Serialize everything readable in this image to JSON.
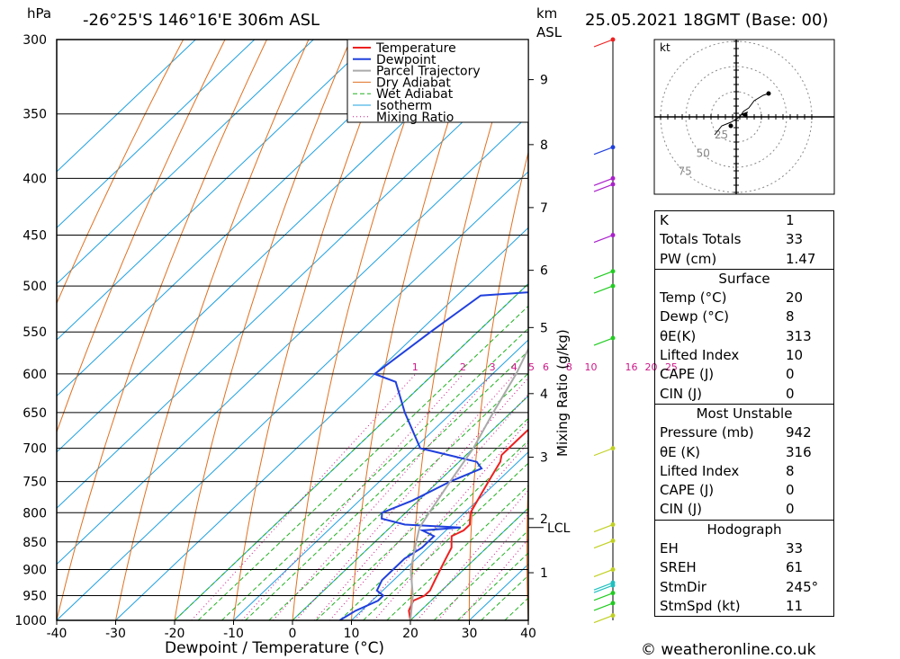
{
  "header": {
    "pressure_unit": "hPa",
    "location": "-26°25'S  146°16'E  306m  ASL",
    "height_unit_top": "km",
    "height_unit_bottom": "ASL",
    "datetime": "25.05.2021  18GMT  (Base: 00)"
  },
  "footer": {
    "credit": "© weatheronline.co.uk"
  },
  "colors": {
    "temperature": "#ee2020",
    "dewpoint": "#2040dd",
    "parcel": "#aaaaaa",
    "dry_adiabat": "#e07020",
    "wet_adiabat": "#20b020",
    "isotherm": "#1ea0e0",
    "mixing_ratio": "#cc1888"
  },
  "chart_data": {
    "type": "line",
    "title": "-26°25'S  146°16'E  306m  ASL",
    "xlabel": "Dewpoint / Temperature (°C)",
    "ylabel": "hPa",
    "xlim": [
      -40,
      40
    ],
    "ylim": [
      1000,
      300
    ],
    "x_ticks": [
      "-40",
      "-30",
      "-20",
      "-10",
      "0",
      "10",
      "20",
      "30",
      "40"
    ],
    "y_ticks": [
      "300",
      "350",
      "400",
      "450",
      "500",
      "550",
      "600",
      "650",
      "700",
      "750",
      "800",
      "850",
      "900",
      "950",
      "1000"
    ],
    "right_axis_label": "km ASL",
    "km_ticks": [
      {
        "label": "1",
        "p": 906
      },
      {
        "label": "2",
        "p": 810
      },
      {
        "label": "3",
        "p": 713
      },
      {
        "label": "4",
        "p": 625
      },
      {
        "label": "5",
        "p": 545
      },
      {
        "label": "6",
        "p": 484
      },
      {
        "label": "7",
        "p": 425
      },
      {
        "label": "8",
        "p": 373
      },
      {
        "label": "9",
        "p": 326
      }
    ],
    "lcl_label": "LCL",
    "lcl_p": 825,
    "mixing_ratio_label": "Mixing Ratio (g/kg)",
    "mixing_ratio_values": [
      "1",
      "2",
      "3",
      "4",
      "5",
      "6",
      "8",
      "10",
      "16",
      "20",
      "25"
    ],
    "legend": [
      "Temperature",
      "Dewpoint",
      "Parcel Trajectory",
      "Dry Adiabat",
      "Wet Adiabat",
      "Isotherm",
      "Mixing Ratio"
    ],
    "legend_position": "top-right",
    "series": [
      {
        "name": "Temperature",
        "points": [
          [
            1000,
            20
          ],
          [
            990,
            19
          ],
          [
            980,
            18
          ],
          [
            960,
            17
          ],
          [
            950,
            18
          ],
          [
            940,
            18
          ],
          [
            920,
            17
          ],
          [
            900,
            16
          ],
          [
            880,
            15
          ],
          [
            860,
            14
          ],
          [
            850,
            13
          ],
          [
            840,
            12
          ],
          [
            830,
            13
          ],
          [
            820,
            13
          ],
          [
            810,
            12
          ],
          [
            800,
            11
          ],
          [
            780,
            10
          ],
          [
            760,
            9
          ],
          [
            740,
            8
          ],
          [
            720,
            7
          ],
          [
            710,
            6
          ],
          [
            700,
            6
          ],
          [
            650,
            6
          ],
          [
            620,
            6
          ],
          [
            610,
            7
          ],
          [
            600,
            7
          ],
          [
            590,
            7
          ],
          [
            550,
            6
          ],
          [
            500,
            4
          ],
          [
            470,
            2
          ],
          [
            460,
            2
          ],
          [
            450,
            3
          ],
          [
            440,
            3
          ],
          [
            420,
            1
          ],
          [
            400,
            -1
          ],
          [
            380,
            -3
          ],
          [
            360,
            -5
          ],
          [
            340,
            -6
          ],
          [
            320,
            -7
          ],
          [
            300,
            -8
          ]
        ]
      },
      {
        "name": "Dewpoint",
        "points": [
          [
            1000,
            8
          ],
          [
            980,
            9
          ],
          [
            960,
            11
          ],
          [
            950,
            11
          ],
          [
            940,
            9
          ],
          [
            920,
            8
          ],
          [
            900,
            8
          ],
          [
            880,
            8
          ],
          [
            860,
            9
          ],
          [
            850,
            9
          ],
          [
            840,
            9
          ],
          [
            830,
            6
          ],
          [
            825,
            12
          ],
          [
            820,
            2
          ],
          [
            810,
            -3
          ],
          [
            800,
            -4
          ],
          [
            780,
            -1
          ],
          [
            750,
            2
          ],
          [
            730,
            5
          ],
          [
            720,
            3
          ],
          [
            700,
            -9
          ],
          [
            650,
            -18
          ],
          [
            610,
            -25
          ],
          [
            600,
            -30
          ],
          [
            550,
            -28
          ],
          [
            510,
            -26
          ],
          [
            500,
            -4
          ],
          [
            480,
            1
          ],
          [
            470,
            6
          ],
          [
            460,
            3
          ],
          [
            450,
            -2
          ],
          [
            440,
            -2
          ],
          [
            420,
            -1
          ],
          [
            400,
            -1
          ],
          [
            380,
            -2
          ],
          [
            360,
            -4
          ],
          [
            340,
            -6
          ],
          [
            320,
            -8
          ],
          [
            300,
            -11
          ]
        ]
      },
      {
        "name": "Parcel Trajectory",
        "points": [
          [
            1000,
            20
          ],
          [
            950,
            16
          ],
          [
            900,
            11
          ],
          [
            850,
            7
          ],
          [
            825,
            5
          ],
          [
            800,
            4
          ],
          [
            750,
            2
          ],
          [
            700,
            0
          ],
          [
            650,
            -3
          ],
          [
            600,
            -6
          ],
          [
            550,
            -10
          ],
          [
            500,
            -15
          ],
          [
            450,
            -20
          ],
          [
            400,
            -26
          ],
          [
            350,
            -34
          ],
          [
            300,
            -43
          ]
        ]
      }
    ],
    "wind_profile_markers": [
      {
        "p": 300,
        "color": "#ee2020"
      },
      {
        "p": 375,
        "color": "#2040dd"
      },
      {
        "p": 400,
        "color": "#aa20cc"
      },
      {
        "p": 405,
        "color": "#aa20cc"
      },
      {
        "p": 450,
        "color": "#aa20cc"
      },
      {
        "p": 485,
        "color": "#20cc20"
      },
      {
        "p": 500,
        "color": "#20cc20"
      },
      {
        "p": 557,
        "color": "#20cc20"
      },
      {
        "p": 700,
        "color": "#c0d020"
      },
      {
        "p": 820,
        "color": "#c0d020"
      },
      {
        "p": 848,
        "color": "#c0d020"
      },
      {
        "p": 900,
        "color": "#c0d020"
      },
      {
        "p": 925,
        "color": "#20c0c0"
      },
      {
        "p": 930,
        "color": "#20c0c0"
      },
      {
        "p": 945,
        "color": "#20cc20"
      },
      {
        "p": 965,
        "color": "#20cc20"
      },
      {
        "p": 990,
        "color": "#c0d020"
      }
    ],
    "hodograph": {
      "unit_label": "kt",
      "ring_labels": [
        "25",
        "50",
        "75"
      ]
    }
  },
  "indices": {
    "basic": [
      {
        "label": "K",
        "value": "1"
      },
      {
        "label": "Totals Totals",
        "value": "33"
      },
      {
        "label": "PW (cm)",
        "value": "1.47"
      }
    ],
    "surface": {
      "title": "Surface",
      "rows": [
        {
          "label": "Temp (°C)",
          "value": "20"
        },
        {
          "label": "Dewp (°C)",
          "value": "8"
        },
        {
          "label": "θE(K)",
          "value": "313"
        },
        {
          "label": "Lifted Index",
          "value": "10"
        },
        {
          "label": "CAPE (J)",
          "value": "0"
        },
        {
          "label": "CIN (J)",
          "value": "0"
        }
      ]
    },
    "most_unstable": {
      "title": "Most Unstable",
      "rows": [
        {
          "label": "Pressure (mb)",
          "value": "942"
        },
        {
          "label": "θE (K)",
          "value": "316"
        },
        {
          "label": "Lifted Index",
          "value": "8"
        },
        {
          "label": "CAPE (J)",
          "value": "0"
        },
        {
          "label": "CIN (J)",
          "value": "0"
        }
      ]
    },
    "hodograph": {
      "title": "Hodograph",
      "rows": [
        {
          "label": "EH",
          "value": "33"
        },
        {
          "label": "SREH",
          "value": "61"
        },
        {
          "label": "StmDir",
          "value": "245°"
        },
        {
          "label": "StmSpd (kt)",
          "value": "11"
        }
      ]
    }
  }
}
